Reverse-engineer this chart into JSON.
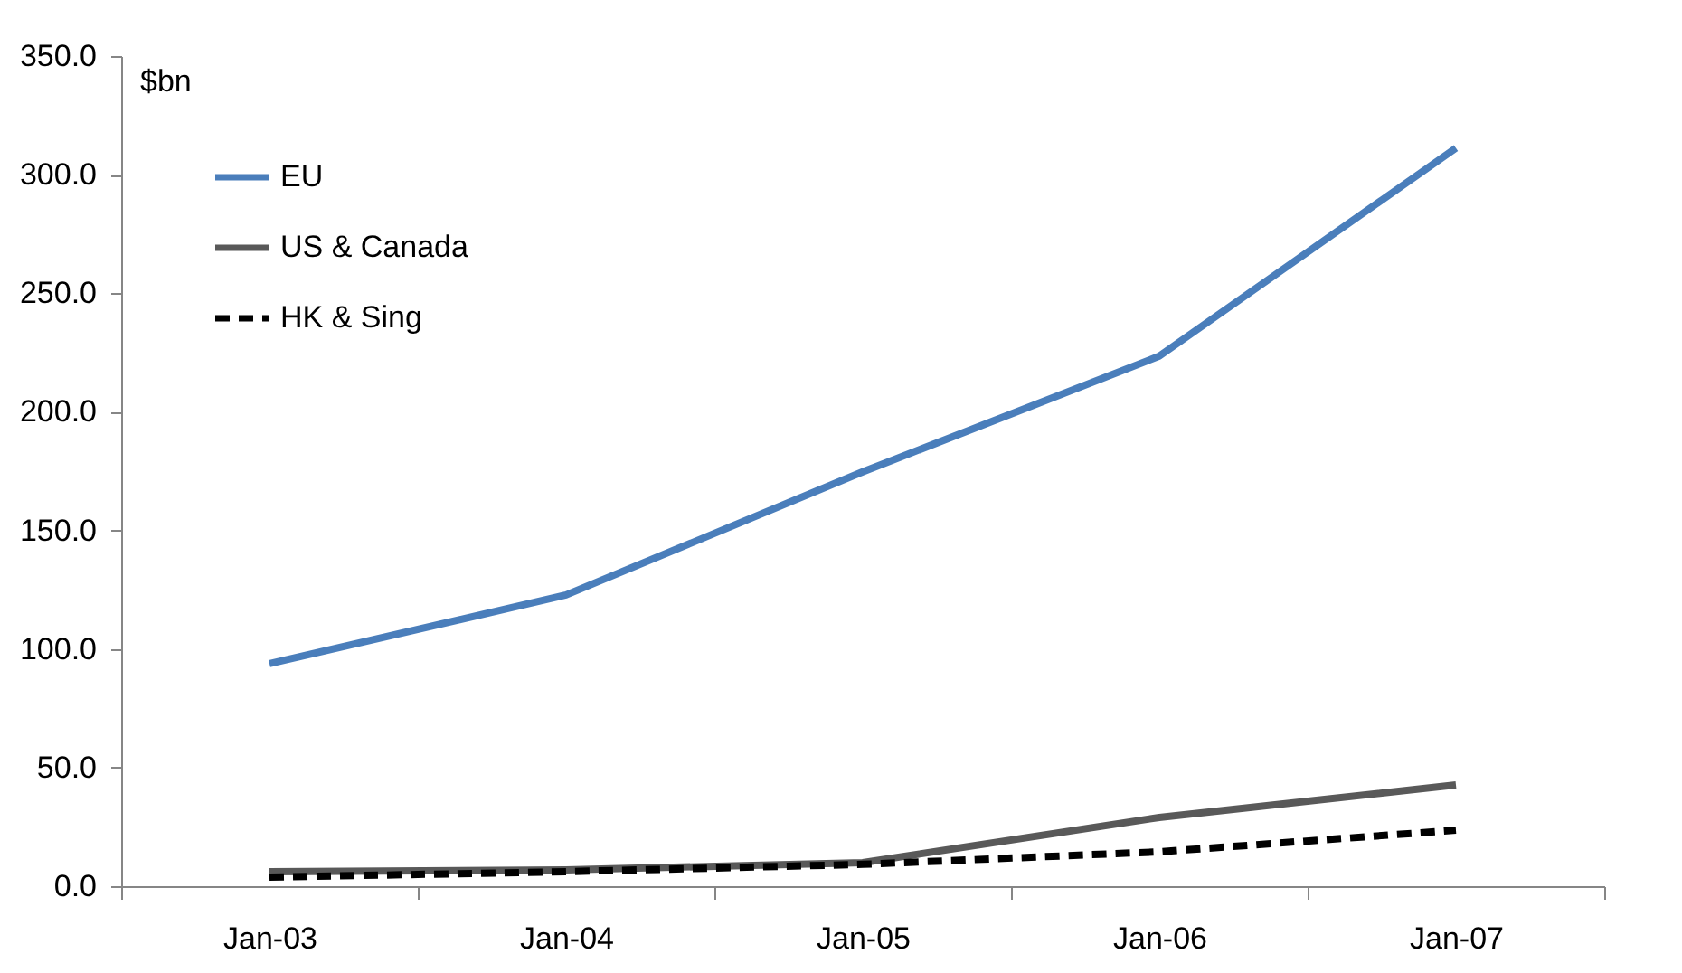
{
  "chart_data": {
    "type": "line",
    "ylabel": "$bn",
    "categories": [
      "Jan-03",
      "Jan-04",
      "Jan-05",
      "Jan-06",
      "Jan-07"
    ],
    "series": [
      {
        "name": "EU",
        "color": "#4a7ebb",
        "values": [
          93.8,
          122.8,
          174.7,
          223.5,
          311.2
        ]
      },
      {
        "name": "US & Canada",
        "color": "#595959",
        "values": [
          6.1,
          6.9,
          9.9,
          29.0,
          42.7
        ]
      },
      {
        "name": "HK & Sing",
        "color": "#000000",
        "line_style": "dashed",
        "values": [
          3.8,
          6.1,
          9.2,
          14.5,
          23.6
        ]
      }
    ],
    "ylim": [
      0,
      350
    ],
    "yticks": [
      {
        "value": 0,
        "label": "0.0"
      },
      {
        "value": 50,
        "label": "50.0"
      },
      {
        "value": 100,
        "label": "100.0"
      },
      {
        "value": 150,
        "label": "150.0"
      },
      {
        "value": 200,
        "label": "200.0"
      },
      {
        "value": 250,
        "label": "250.0"
      },
      {
        "value": 300,
        "label": "300.0"
      },
      {
        "value": 350,
        "label": "350.0"
      }
    ],
    "grid": false,
    "legend": "top left",
    "marker": "none",
    "line_style": "solid"
  }
}
